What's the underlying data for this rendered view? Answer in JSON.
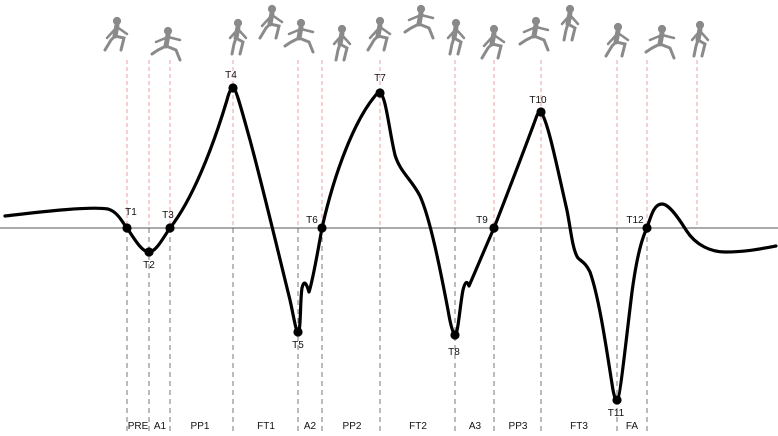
{
  "diagram": {
    "line_color": "#000000",
    "guide_dashed_color": "#777777",
    "guide_red_color": "#e8a0a0",
    "runner_color": "#8a8a8a",
    "timepoints": [
      {
        "label": "T1"
      },
      {
        "label": "T2"
      },
      {
        "label": "T3"
      },
      {
        "label": "T4"
      },
      {
        "label": "T5"
      },
      {
        "label": "T6"
      },
      {
        "label": "T7"
      },
      {
        "label": "T8"
      },
      {
        "label": "T9"
      },
      {
        "label": "T10"
      },
      {
        "label": "T11"
      },
      {
        "label": "T12"
      }
    ],
    "phases": [
      {
        "label": "PRE"
      },
      {
        "label": "A1"
      },
      {
        "label": "PP1"
      },
      {
        "label": "FT1"
      },
      {
        "label": "A2"
      },
      {
        "label": "PP2"
      },
      {
        "label": "FT2"
      },
      {
        "label": "A3"
      },
      {
        "label": "PP3"
      },
      {
        "label": "FT3"
      },
      {
        "label": "FA"
      }
    ],
    "runner_figures": [
      {
        "icon": "runner-icon"
      },
      {
        "icon": "runner-icon"
      },
      {
        "icon": "runner-icon"
      },
      {
        "icon": "runner-icon"
      },
      {
        "icon": "runner-icon"
      },
      {
        "icon": "runner-icon"
      },
      {
        "icon": "runner-icon"
      },
      {
        "icon": "runner-icon"
      },
      {
        "icon": "runner-icon"
      },
      {
        "icon": "runner-icon"
      },
      {
        "icon": "runner-icon"
      },
      {
        "icon": "runner-icon"
      },
      {
        "icon": "runner-icon"
      },
      {
        "icon": "runner-icon"
      },
      {
        "icon": "runner-icon"
      }
    ]
  }
}
